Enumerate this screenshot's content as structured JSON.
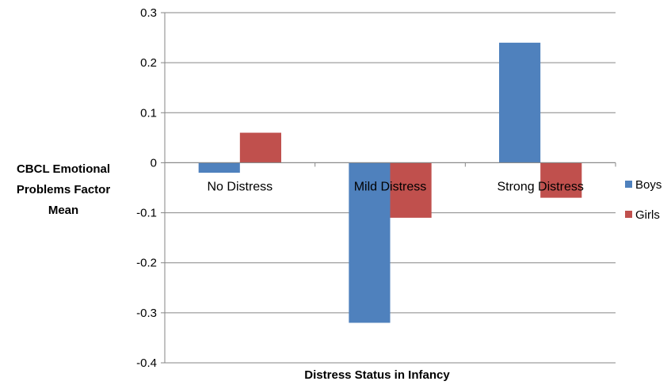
{
  "chart_data": {
    "type": "bar",
    "categories": [
      "No Distress",
      "Mild Distress",
      "Strong Distress"
    ],
    "series": [
      {
        "name": "Boys",
        "color": "#4f81bd",
        "values": [
          -0.02,
          -0.32,
          0.24
        ]
      },
      {
        "name": "Girls",
        "color": "#c0504d",
        "values": [
          0.06,
          -0.11,
          -0.07
        ]
      }
    ],
    "xlabel": "Distress Status in Infancy",
    "ylabel_lines": [
      "CBCL Emotional",
      "Problems Factor",
      "Mean"
    ],
    "ylim": [
      -0.4,
      0.3
    ],
    "yticks": [
      "0.3",
      "0.2",
      "0.1",
      "0",
      "-0.1",
      "-0.2",
      "-0.3",
      "-0.4"
    ],
    "grid": true,
    "legend_position": "right"
  }
}
